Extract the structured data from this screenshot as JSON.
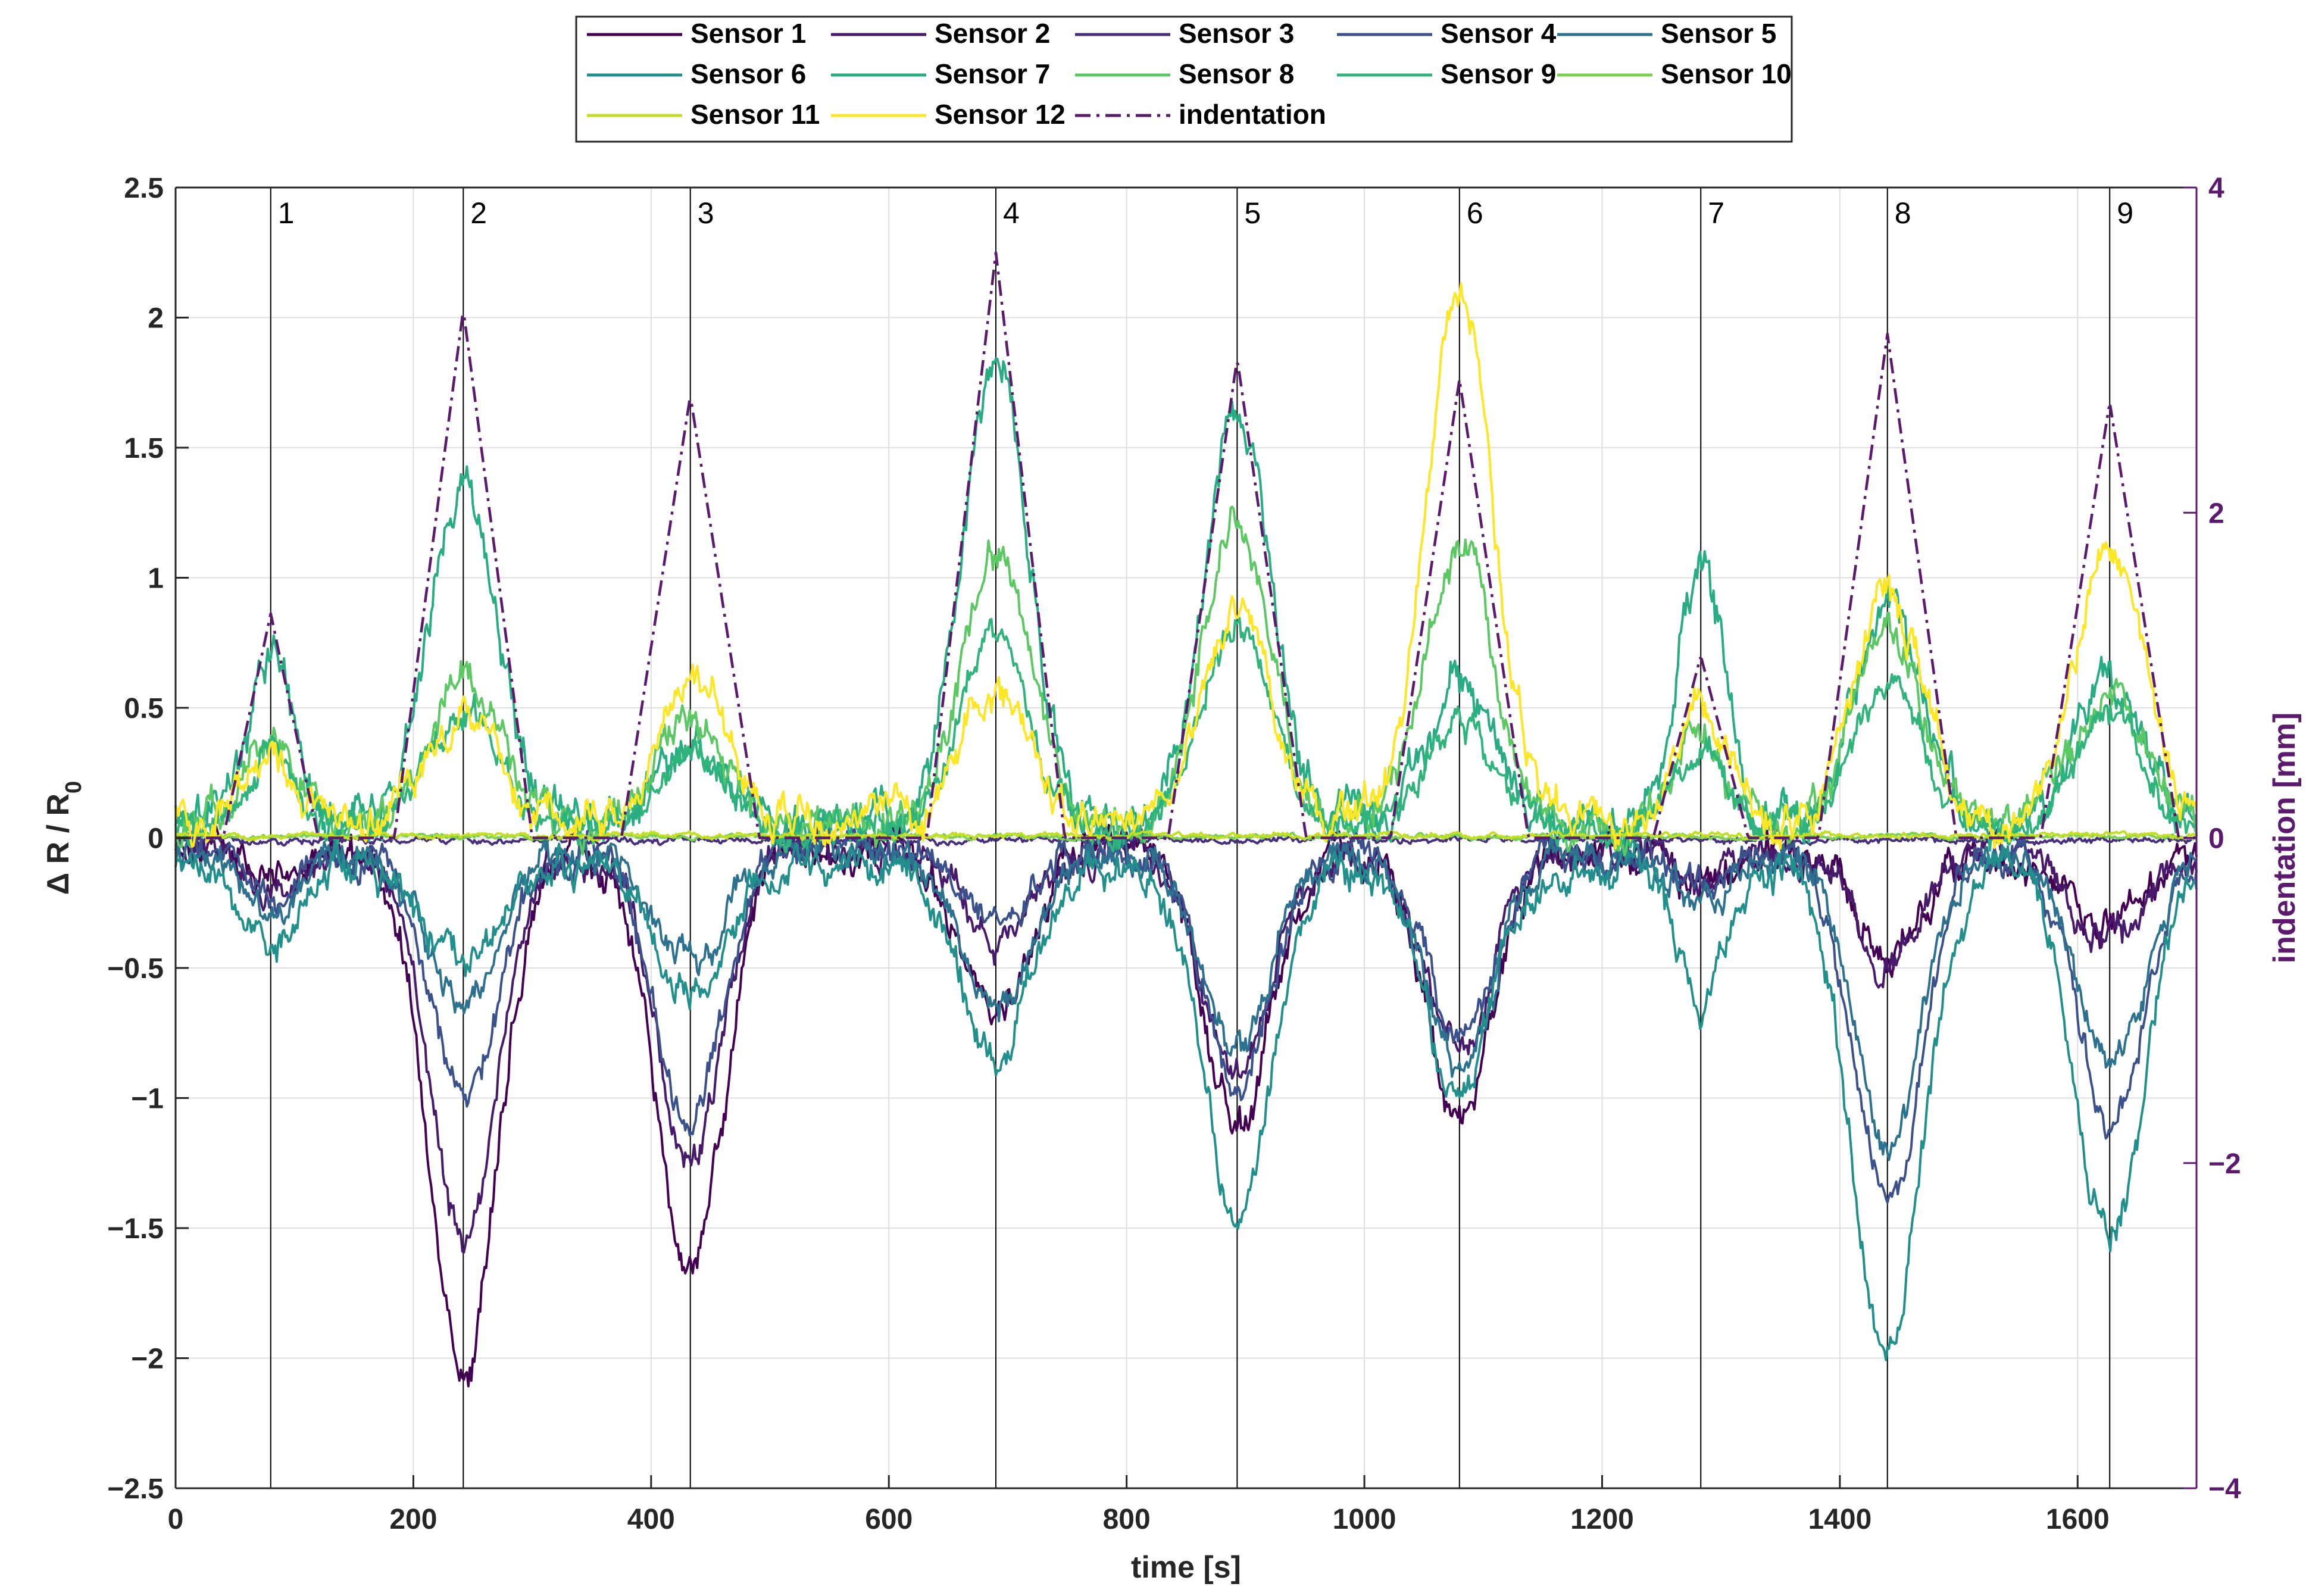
{
  "chart_data": {
    "type": "line",
    "xlabel": "time [s]",
    "ylabel_left": "Δ R / R",
    "ylabel_left_sub": "0",
    "ylabel_right": "indentation [mm]",
    "xlim": [
      0,
      1700
    ],
    "ylim_left": [
      -2.5,
      2.5
    ],
    "ylim_right": [
      -4,
      4
    ],
    "xticks": [
      0,
      200,
      400,
      600,
      800,
      1000,
      1200,
      1400,
      1600
    ],
    "xtick_labels": [
      "0",
      "200",
      "400",
      "600",
      "800",
      "1000",
      "1200",
      "1400",
      "1600"
    ],
    "yticks_left": [
      2.5,
      2,
      1.5,
      1,
      0.5,
      0,
      -0.5,
      -1,
      -1.5,
      -2,
      -2.5
    ],
    "ytick_labels_left": [
      "2.5",
      "2",
      "1.5",
      "1",
      "0.5",
      "0",
      "−0.5",
      "−1",
      "−1.5",
      "−2",
      "−2.5"
    ],
    "yticks_right": [
      4,
      2,
      0,
      -2,
      -4
    ],
    "ytick_labels_right": [
      "4",
      "2",
      "0",
      "−2",
      "−4"
    ],
    "grid": true,
    "legend_position": "top-center",
    "events": [
      {
        "label": "1",
        "t": 80
      },
      {
        "label": "2",
        "t": 242
      },
      {
        "label": "3",
        "t": 433
      },
      {
        "label": "4",
        "t": 690
      },
      {
        "label": "5",
        "t": 893
      },
      {
        "label": "6",
        "t": 1080
      },
      {
        "label": "7",
        "t": 1283
      },
      {
        "label": "8",
        "t": 1440
      },
      {
        "label": "9",
        "t": 1627
      }
    ],
    "series": [
      {
        "name": "Sensor 1",
        "color": "#440154",
        "axis": "left",
        "style": "solid",
        "noise": 0.07,
        "base": -0.05,
        "peaks": [
          -0.12,
          -2.0,
          -1.62,
          -0.62,
          -1.05,
          -1.02,
          -0.12,
          -0.38,
          -0.3
        ]
      },
      {
        "name": "Sensor 2",
        "color": "#481a6c",
        "axis": "left",
        "style": "solid",
        "noise": 0.06,
        "base": -0.05,
        "peaks": [
          -0.12,
          -1.5,
          -1.2,
          -0.35,
          -0.85,
          -0.78,
          -0.1,
          -0.42,
          -0.35
        ]
      },
      {
        "name": "Sensor 3",
        "color": "#472f7d",
        "axis": "left",
        "style": "solid",
        "noise": 0.012,
        "base": -0.01,
        "peaks": [
          0,
          0,
          0,
          0,
          0,
          0,
          0,
          0,
          0
        ]
      },
      {
        "name": "Sensor 4",
        "color": "#3b518b",
        "axis": "left",
        "style": "solid",
        "noise": 0.06,
        "base": -0.05,
        "peaks": [
          -0.2,
          -0.95,
          -1.0,
          -0.25,
          -0.9,
          -0.72,
          -0.15,
          -1.35,
          -1.05
        ]
      },
      {
        "name": "Sensor 5",
        "color": "#2c718e",
        "axis": "left",
        "style": "solid",
        "noise": 0.06,
        "base": -0.06,
        "peaks": [
          -0.25,
          -0.6,
          -0.4,
          -0.6,
          -0.75,
          -0.8,
          -0.2,
          -1.1,
          -0.8
        ]
      },
      {
        "name": "Sensor 6",
        "color": "#21908d",
        "axis": "left",
        "style": "solid",
        "noise": 0.07,
        "base": -0.1,
        "peaks": [
          -0.35,
          -0.4,
          -0.5,
          -0.75,
          -1.35,
          -0.9,
          -0.55,
          -1.95,
          -1.45
        ]
      },
      {
        "name": "Sensor 7",
        "color": "#27ad81",
        "axis": "left",
        "style": "solid",
        "noise": 0.08,
        "base": 0.05,
        "peaks": [
          0.65,
          1.3,
          0.3,
          1.78,
          1.55,
          0.55,
          1.0,
          0.88,
          0.52
        ]
      },
      {
        "name": "Sensor 8",
        "color": "#5cc863",
        "axis": "left",
        "style": "solid",
        "noise": 0.07,
        "base": 0.05,
        "peaks": [
          0.35,
          0.6,
          0.4,
          1.05,
          1.2,
          1.08,
          0.4,
          0.75,
          0.5
        ]
      },
      {
        "name": "Sensor 9",
        "color": "#2fb47c",
        "axis": "left",
        "style": "solid",
        "noise": 0.06,
        "base": 0.04,
        "peaks": [
          0.3,
          0.45,
          0.3,
          0.75,
          0.8,
          0.42,
          0.3,
          0.55,
          0.4
        ]
      },
      {
        "name": "Sensor 10",
        "color": "#7ad151",
        "axis": "left",
        "style": "solid",
        "noise": 0.008,
        "base": 0.005,
        "peaks": [
          0,
          0,
          0,
          0,
          0,
          0,
          0,
          0,
          0
        ]
      },
      {
        "name": "Sensor 11",
        "color": "#c2df23",
        "axis": "left",
        "style": "solid",
        "noise": 0.01,
        "base": 0.01,
        "peaks": [
          0,
          0,
          0,
          0,
          0,
          0,
          0,
          0,
          0
        ]
      },
      {
        "name": "Sensor 12",
        "color": "#fde725",
        "axis": "left",
        "style": "solid",
        "noise": 0.07,
        "base": 0.06,
        "peaks": [
          0.25,
          0.42,
          0.55,
          0.5,
          0.88,
          2.02,
          0.45,
          0.85,
          1.05
        ]
      },
      {
        "name": "indentation",
        "color": "#5b1a6e",
        "axis": "right",
        "style": "dashdot",
        "noise": 0,
        "base": 0,
        "peaks": [
          1.38,
          3.25,
          2.72,
          3.6,
          2.95,
          2.82,
          1.12,
          3.1,
          2.68
        ]
      }
    ]
  }
}
